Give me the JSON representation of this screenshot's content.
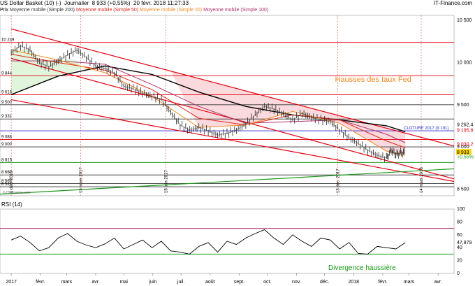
{
  "header": {
    "instrument": "US Dollar Basket (10) (-)",
    "period": "Journalier",
    "price_info": "8 933 (+0,55%)",
    "timestamp": "20 févr. 2018 11:27:33",
    "source": "IT-Finance.com"
  },
  "legend": {
    "prefix": "Prix",
    "ma200": "Moyenne mobile (Simple 200)",
    "ma50": "Moyenne mobile (Simple 50)",
    "ma20": "Moyenne mobile (Simple 20)",
    "ma100": "Moyenne mobile (Simple 100)"
  },
  "colors": {
    "ma200": "#000000",
    "ma50": "#e3271c",
    "ma20": "#f08a24",
    "ma100": "#b0306a",
    "channel": "#e3000f",
    "support": "#1a9a1a",
    "cloture": "#2b2bd6",
    "resistance_zone": "#f9d3d6",
    "support_zone": "#d9f2d3"
  },
  "chart_data": [
    {
      "type": "line",
      "panel": "price",
      "title": "US Dollar Basket (10) (-) Journalier",
      "xlabel": "",
      "ylabel": "",
      "ylim": [
        8420,
        10560
      ],
      "y_ticks": [
        10500,
        10000,
        9500,
        9000,
        8500
      ],
      "x_ticks": [
        {
          "label": "2017",
          "day": 0
        },
        {
          "label": "févr.",
          "day": 31
        },
        {
          "label": "mars",
          "day": 59
        },
        {
          "label": "avr.",
          "day": 90
        },
        {
          "label": "mai",
          "day": 120
        },
        {
          "label": "juin",
          "day": 151
        },
        {
          "label": "juil.",
          "day": 181
        },
        {
          "label": "août",
          "day": 212
        },
        {
          "label": "sept.",
          "day": 243
        },
        {
          "label": "oct.",
          "day": 273
        },
        {
          "label": "nov.",
          "day": 304
        },
        {
          "label": "déc.",
          "day": 334
        },
        {
          "label": "2018",
          "day": 365
        },
        {
          "label": "févr.",
          "day": 396
        },
        {
          "label": "mars",
          "day": 424
        },
        {
          "label": "avr.",
          "day": 455
        }
      ],
      "x_range": [
        -12,
        472
      ],
      "price_series": {
        "name": "Prix",
        "days": [
          0,
          10,
          20,
          30,
          40,
          50,
          60,
          70,
          80,
          90,
          100,
          110,
          120,
          130,
          140,
          150,
          160,
          170,
          180,
          190,
          200,
          210,
          220,
          230,
          240,
          250,
          260,
          270,
          280,
          290,
          300,
          310,
          320,
          330,
          340,
          350,
          360,
          370,
          380,
          390,
          400,
          405,
          410,
          415,
          420
        ],
        "values": [
          10120,
          10200,
          10150,
          10000,
          9950,
          10020,
          10090,
          10150,
          10060,
          9960,
          9930,
          9880,
          9720,
          9690,
          9640,
          9600,
          9560,
          9410,
          9260,
          9200,
          9230,
          9190,
          9140,
          9160,
          9200,
          9270,
          9380,
          9480,
          9450,
          9390,
          9320,
          9400,
          9350,
          9320,
          9300,
          9200,
          9110,
          9040,
          8960,
          8900,
          8870,
          8960,
          8910,
          8930,
          8933
        ]
      },
      "series": [
        {
          "name": "Moyenne mobile (Simple 200)",
          "days": [
            0,
            50,
            100,
            150,
            200,
            250,
            300,
            350,
            400,
            420
          ],
          "values": [
            9620,
            9840,
            9960,
            9860,
            9650,
            9480,
            9380,
            9320,
            9250,
            9180
          ]
        },
        {
          "name": "Moyenne mobile (Simple 100)",
          "days": [
            0,
            50,
            100,
            150,
            200,
            250,
            300,
            350,
            400,
            420
          ],
          "values": [
            10020,
            10020,
            9980,
            9740,
            9480,
            9280,
            9300,
            9320,
            9150,
            9050
          ]
        },
        {
          "name": "Moyenne mobile (Simple 50)",
          "days": [
            0,
            50,
            100,
            150,
            200,
            250,
            300,
            350,
            400,
            420
          ],
          "values": [
            10100,
            10000,
            9910,
            9680,
            9340,
            9260,
            9380,
            9320,
            9070,
            8990
          ]
        },
        {
          "name": "Moyenne mobile (Simple 20)",
          "days": [
            0,
            50,
            100,
            150,
            200,
            250,
            300,
            350,
            400,
            420
          ],
          "values": [
            10150,
            10030,
            9880,
            9600,
            9230,
            9260,
            9420,
            9280,
            8950,
            8900
          ]
        }
      ],
      "horizontal_levels": [
        {
          "value": 10239,
          "label": "10 239",
          "color": "red"
        },
        {
          "value": 9844,
          "label": "9 844",
          "color": "red"
        },
        {
          "value": 9618,
          "label": "9 618",
          "color": "red"
        },
        {
          "value": 9500,
          "label": "9 500",
          "color": "black"
        },
        {
          "value": 9331,
          "label": "9 331",
          "color": "black"
        },
        {
          "value": 9191,
          "label": "CLOTURE 2017 (9 191)",
          "color": "blue"
        },
        {
          "value": 9088,
          "label": "9 088",
          "color": "red"
        },
        {
          "value": 9000,
          "label": "9 000",
          "color": "black"
        },
        {
          "value": 8815,
          "label": "8 815",
          "color": "green"
        },
        {
          "value": 8667,
          "label": "8 667",
          "color": "black"
        },
        {
          "value": 8566,
          "label": "8 566",
          "color": "black"
        },
        {
          "value": 8527,
          "label": "8 527",
          "color": "black"
        }
      ],
      "right_labels": [
        {
          "value": 9262.4,
          "label": "9 262,4"
        },
        {
          "value": 9195.8,
          "label": "9 195,8"
        },
        {
          "value": 9030.2,
          "label": "9 030,2"
        },
        {
          "value": 8933,
          "label": "8 933"
        },
        {
          "value": 8880,
          "label": "+0,55%"
        }
      ],
      "vertical_markers": [
        {
          "day": 0,
          "label": "1 déc. 2016"
        },
        {
          "day": 74,
          "label": "15 mars 2017"
        },
        {
          "day": 165,
          "label": "15 juin 2017"
        },
        {
          "day": 348,
          "label": "13 déc. 2017"
        },
        {
          "day": 437,
          "label": "14 mars 2018"
        }
      ],
      "trendlines": [
        {
          "name": "channel-upper",
          "from": [
            0,
            10400
          ],
          "to": [
            472,
            9010
          ]
        },
        {
          "name": "channel-middle",
          "from": [
            0,
            10050
          ],
          "to": [
            472,
            8620
          ]
        },
        {
          "name": "channel-lower",
          "from": [
            0,
            9560
          ],
          "to": [
            472,
            8590
          ]
        },
        {
          "name": "support-long",
          "from": [
            -12,
            8440
          ],
          "to": [
            472,
            8740
          ]
        }
      ],
      "annotations": [
        {
          "text": "Hausses des taux Fed",
          "day": 345,
          "value": 9770,
          "color": "#f08a24"
        }
      ],
      "watermark": "© IT-Finance.com"
    },
    {
      "type": "line",
      "panel": "rsi",
      "title": "RSI (14)",
      "ylim": [
        0,
        100
      ],
      "y_ticks": [
        100,
        80,
        60,
        40,
        20,
        0
      ],
      "levels": [
        70,
        30
      ],
      "series": [
        {
          "name": "RSI (14)",
          "days": [
            0,
            10,
            20,
            30,
            40,
            50,
            60,
            70,
            80,
            90,
            100,
            110,
            120,
            130,
            140,
            150,
            160,
            170,
            180,
            190,
            200,
            210,
            220,
            230,
            240,
            250,
            260,
            270,
            280,
            290,
            300,
            310,
            320,
            330,
            340,
            350,
            360,
            370,
            380,
            390,
            400,
            410,
            420
          ],
          "values": [
            52,
            58,
            48,
            35,
            40,
            55,
            62,
            50,
            44,
            40,
            46,
            55,
            38,
            45,
            52,
            40,
            50,
            35,
            33,
            30,
            42,
            48,
            33,
            50,
            45,
            55,
            62,
            68,
            55,
            45,
            60,
            50,
            42,
            55,
            52,
            38,
            48,
            31,
            30,
            42,
            40,
            38,
            47.879
          ]
        }
      ],
      "current_value_label": "47,879",
      "annotations": [
        {
          "text": "Divergence haussière",
          "color": "#1a9a1a"
        }
      ]
    }
  ]
}
